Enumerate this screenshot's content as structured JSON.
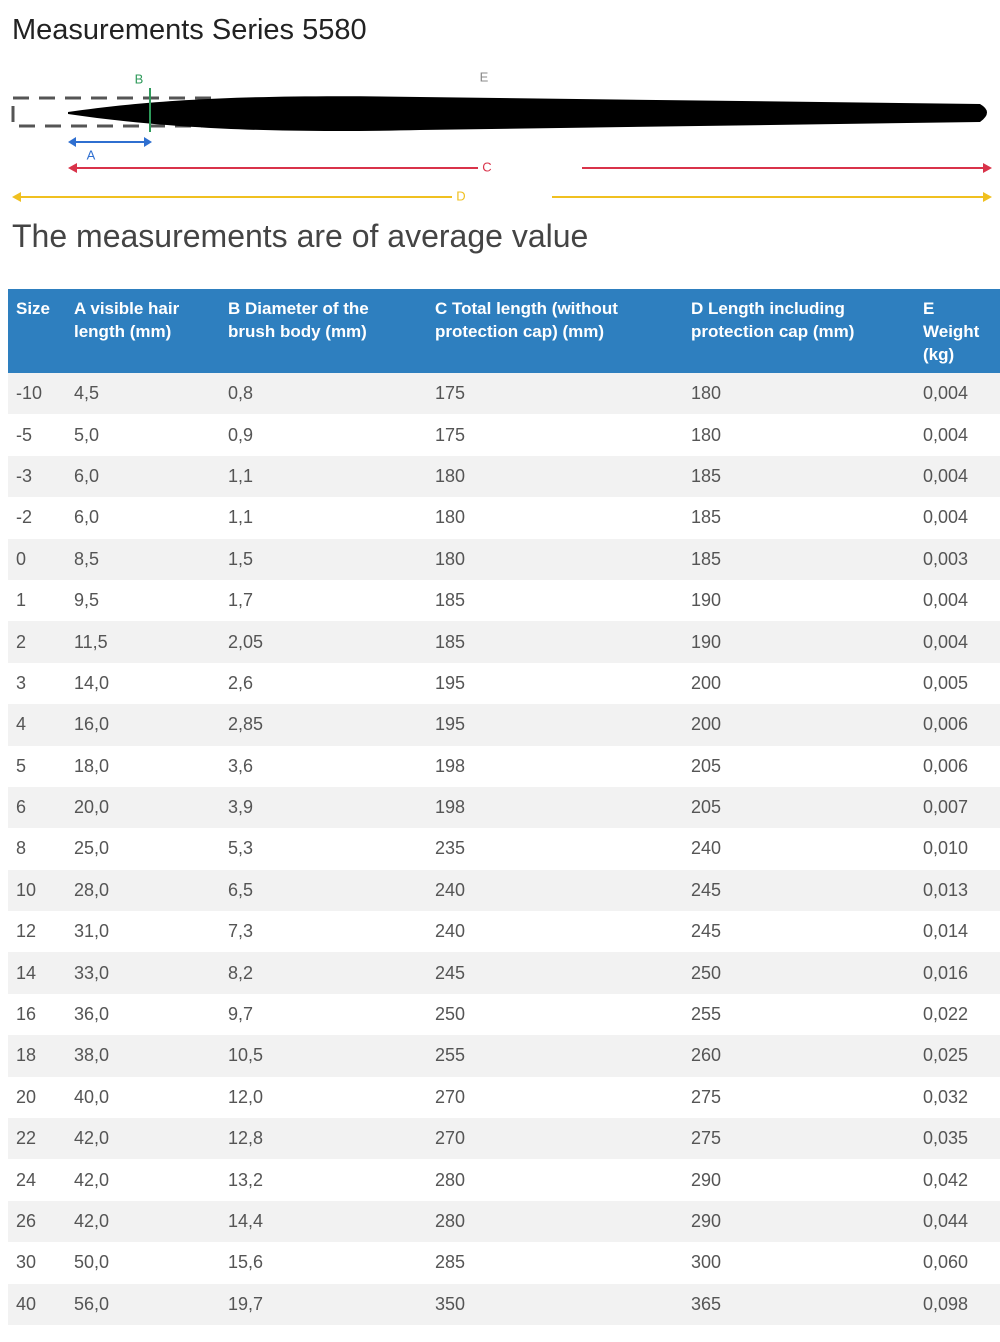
{
  "header": {
    "title": "Measurements Series 5580"
  },
  "diagram": {
    "labels": {
      "b": "B",
      "e": "E",
      "a": "A",
      "c": "C",
      "d": "D"
    }
  },
  "subtitle": "The measurements are of average value",
  "table": {
    "columns": [
      "Size",
      "A visible hair length (mm)",
      "B Diameter of the brush body (mm)",
      "C Total length (without protection cap) (mm)",
      "D Length including protection cap (mm)",
      "E Weight (kg)"
    ],
    "rows": [
      [
        "-10",
        "4,5",
        "0,8",
        "175",
        "180",
        "0,004"
      ],
      [
        "-5",
        "5,0",
        "0,9",
        "175",
        "180",
        "0,004"
      ],
      [
        "-3",
        "6,0",
        "1,1",
        "180",
        "185",
        "0,004"
      ],
      [
        "-2",
        "6,0",
        "1,1",
        "180",
        "185",
        "0,004"
      ],
      [
        "0",
        "8,5",
        "1,5",
        "180",
        "185",
        "0,003"
      ],
      [
        "1",
        "9,5",
        "1,7",
        "185",
        "190",
        "0,004"
      ],
      [
        "2",
        "11,5",
        "2,05",
        "185",
        "190",
        "0,004"
      ],
      [
        "3",
        "14,0",
        "2,6",
        "195",
        "200",
        "0,005"
      ],
      [
        "4",
        "16,0",
        "2,85",
        "195",
        "200",
        "0,006"
      ],
      [
        "5",
        "18,0",
        "3,6",
        "198",
        "205",
        "0,006"
      ],
      [
        "6",
        "20,0",
        "3,9",
        "198",
        "205",
        "0,007"
      ],
      [
        "8",
        "25,0",
        "5,3",
        "235",
        "240",
        "0,010"
      ],
      [
        "10",
        "28,0",
        "6,5",
        "240",
        "245",
        "0,013"
      ],
      [
        "12",
        "31,0",
        "7,3",
        "240",
        "245",
        "0,014"
      ],
      [
        "14",
        "33,0",
        "8,2",
        "245",
        "250",
        "0,016"
      ],
      [
        "16",
        "36,0",
        "9,7",
        "250",
        "255",
        "0,022"
      ],
      [
        "18",
        "38,0",
        "10,5",
        "255",
        "260",
        "0,025"
      ],
      [
        "20",
        "40,0",
        "12,0",
        "270",
        "275",
        "0,032"
      ],
      [
        "22",
        "42,0",
        "12,8",
        "270",
        "275",
        "0,035"
      ],
      [
        "24",
        "42,0",
        "13,2",
        "280",
        "290",
        "0,042"
      ],
      [
        "26",
        "42,0",
        "14,4",
        "280",
        "290",
        "0,044"
      ],
      [
        "30",
        "50,0",
        "15,6",
        "285",
        "300",
        "0,060"
      ],
      [
        "40",
        "56,0",
        "19,7",
        "350",
        "365",
        "0,098"
      ]
    ]
  }
}
